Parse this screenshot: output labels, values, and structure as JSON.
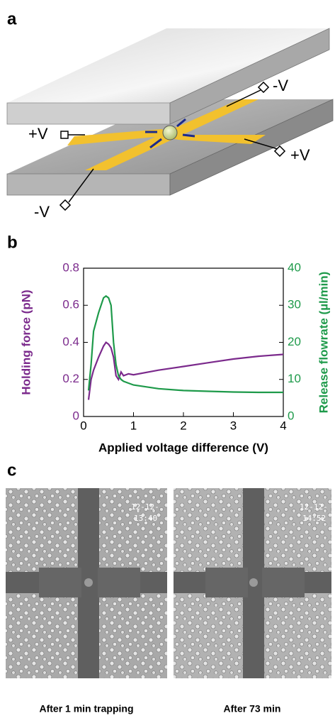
{
  "panel_a": {
    "label": "a",
    "terminals": [
      "+V",
      "-V",
      "+V",
      "-V"
    ]
  },
  "panel_b": {
    "label": "b"
  },
  "chart_data": {
    "type": "line",
    "xlabel": "Applied voltage difference (V)",
    "ylabel": "Holding force (pN)",
    "y2label": "Release flowrate (µl/min)",
    "ylabel_color": "#7b2a8c",
    "y2label_color": "#1e9a4a",
    "x": [
      0.1,
      0.15,
      0.2,
      0.3,
      0.4,
      0.45,
      0.5,
      0.55,
      0.6,
      0.65,
      0.7,
      0.75,
      0.8,
      0.9,
      1,
      1.5,
      2,
      2.5,
      3,
      3.5,
      4
    ],
    "series": [
      {
        "color": "#7b2a8c",
        "values": [
          0.09,
          0.2,
          0.25,
          0.32,
          0.38,
          0.4,
          0.39,
          0.37,
          0.32,
          0.22,
          0.2,
          0.24,
          0.22,
          0.23,
          0.225,
          0.25,
          0.27,
          0.29,
          0.31,
          0.325,
          0.335
        ]
      },
      {
        "color": "#1e9a4a",
        "axis": "y2",
        "values": [
          7,
          14,
          23,
          28,
          32,
          32.5,
          32,
          30,
          20,
          14,
          11,
          10,
          9.5,
          9,
          8.5,
          7.5,
          7,
          6.8,
          6.6,
          6.5,
          6.5
        ]
      }
    ],
    "xlim": [
      0,
      4
    ],
    "xticks": [
      0,
      1,
      2,
      3,
      4
    ],
    "ylim": [
      0,
      0.8
    ],
    "yticks": [
      0,
      0.2,
      0.4,
      0.6,
      0.8
    ],
    "y2lim": [
      0,
      40
    ],
    "y2ticks": [
      0,
      10,
      20,
      30,
      40
    ]
  },
  "panel_c": {
    "label": "c",
    "images": [
      {
        "date": "12-12-",
        "time": "13:40",
        "caption": "After 1 min trapping"
      },
      {
        "date": "12-12-",
        "time": "14:52",
        "caption": "After 73 min"
      }
    ]
  }
}
